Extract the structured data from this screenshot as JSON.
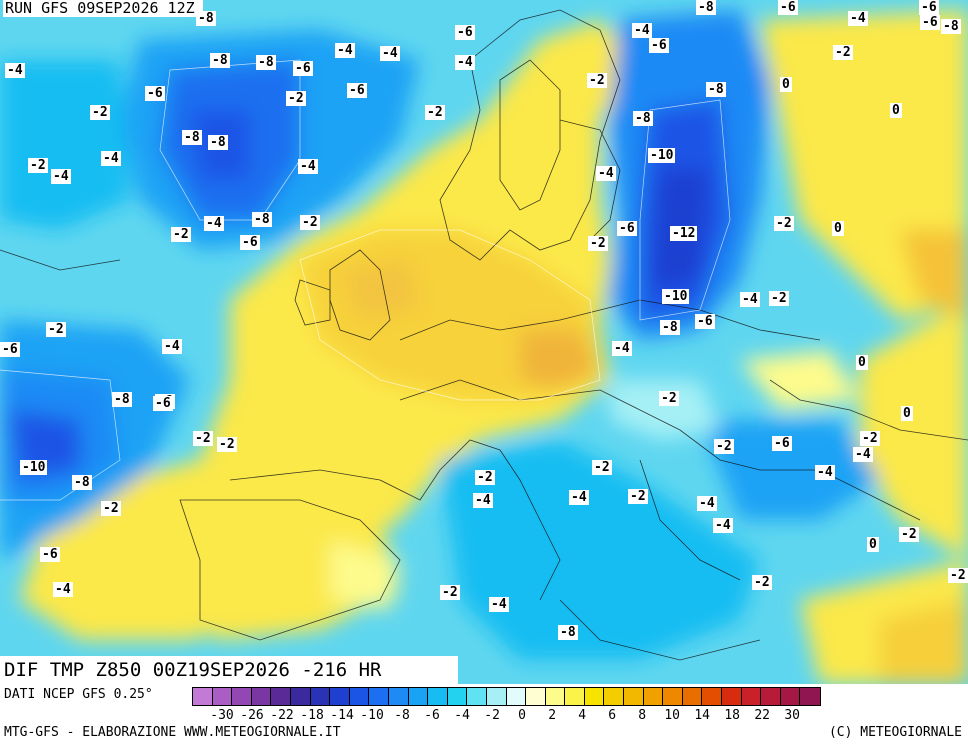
{
  "header": {
    "run_title": "RUN GFS 09SEP2026 12Z"
  },
  "map_title": "DIF TMP Z850 00Z19SEP2026 -216 HR",
  "footer": {
    "data_source": "DATI NCEP GFS 0.25°",
    "credit_left": "MTG-GFS - ELABORAZIONE WWW.METEOGIORNALE.IT",
    "credit_right": "(C) METEOGIORNALE"
  },
  "scale": {
    "colors": [
      "#c27ad6",
      "#aa5ec5",
      "#9347b3",
      "#7a36a3",
      "#5a2b96",
      "#3a2a9e",
      "#2a32b6",
      "#1e3fd0",
      "#1a55e6",
      "#1c6ff0",
      "#1e8af5",
      "#1aa3f5",
      "#17bdf2",
      "#23d2ef",
      "#5fe3f2",
      "#a6f0f5",
      "#e2fbfb",
      "#fefed2",
      "#fdfb8c",
      "#fbf24a",
      "#f7e300",
      "#f4cd00",
      "#f2b800",
      "#f0a100",
      "#ee8800",
      "#ea6d00",
      "#e44e00",
      "#d82c10",
      "#c9202a",
      "#b81a3a",
      "#a51846",
      "#8f1650"
    ],
    "ticks": [
      "-30",
      "-26",
      "-22",
      "-18",
      "-14",
      "-10",
      "-8",
      "-6",
      "-4",
      "-2",
      "0",
      "2",
      "4",
      "6",
      "8",
      "10",
      "14",
      "18",
      "22",
      "30"
    ]
  },
  "map_labels": [
    {
      "text": "-4"
    },
    {
      "text": "-8"
    },
    {
      "text": "-6"
    },
    {
      "text": "-4"
    },
    {
      "text": "-8"
    },
    {
      "text": "-6"
    },
    {
      "text": "-4"
    },
    {
      "text": "-6"
    },
    {
      "text": "-8"
    },
    {
      "text": "-6"
    },
    {
      "text": "-4"
    },
    {
      "text": "-4"
    },
    {
      "text": "-8"
    },
    {
      "text": "-8"
    },
    {
      "text": "-6"
    },
    {
      "text": "-4"
    },
    {
      "text": "-6"
    },
    {
      "text": "-2"
    },
    {
      "text": "-6"
    },
    {
      "text": "-2"
    },
    {
      "text": "-2"
    },
    {
      "text": "-6"
    },
    {
      "text": "-8"
    },
    {
      "text": "-8"
    },
    {
      "text": "0"
    },
    {
      "text": "0"
    },
    {
      "text": "-2"
    },
    {
      "text": "-2"
    },
    {
      "text": "-4"
    },
    {
      "text": "-8"
    },
    {
      "text": "-8"
    },
    {
      "text": "-4"
    },
    {
      "text": "-10"
    },
    {
      "text": "-2"
    },
    {
      "text": "-4"
    },
    {
      "text": "-4"
    },
    {
      "text": "-6"
    },
    {
      "text": "-8"
    },
    {
      "text": "-4"
    },
    {
      "text": "-2"
    },
    {
      "text": "-2"
    },
    {
      "text": "-6"
    },
    {
      "text": "-12"
    },
    {
      "text": "-2"
    },
    {
      "text": "0"
    },
    {
      "text": "-2"
    },
    {
      "text": "-10"
    },
    {
      "text": "-4"
    },
    {
      "text": "-2"
    },
    {
      "text": "-2"
    },
    {
      "text": "-8"
    },
    {
      "text": "-6"
    },
    {
      "text": "-6"
    },
    {
      "text": "-4"
    },
    {
      "text": "-4"
    },
    {
      "text": "0"
    },
    {
      "text": "-8"
    },
    {
      "text": "-6"
    },
    {
      "text": "-2"
    },
    {
      "text": "0"
    },
    {
      "text": "-2"
    },
    {
      "text": "-2"
    },
    {
      "text": "-2"
    },
    {
      "text": "-6"
    },
    {
      "text": "-2"
    },
    {
      "text": "-10"
    },
    {
      "text": "-4"
    },
    {
      "text": "-2"
    },
    {
      "text": "-8"
    },
    {
      "text": "-4"
    },
    {
      "text": "-2"
    },
    {
      "text": "-4"
    },
    {
      "text": "-2"
    },
    {
      "text": "-4"
    },
    {
      "text": "-2"
    },
    {
      "text": "-4"
    },
    {
      "text": "-6"
    },
    {
      "text": "0"
    },
    {
      "text": "-2"
    },
    {
      "text": "-4"
    },
    {
      "text": "-2"
    },
    {
      "text": "-2"
    },
    {
      "text": "-4"
    },
    {
      "text": "-4"
    },
    {
      "text": "-2"
    },
    {
      "text": "-8"
    },
    {
      "text": "-6"
    }
  ]
}
